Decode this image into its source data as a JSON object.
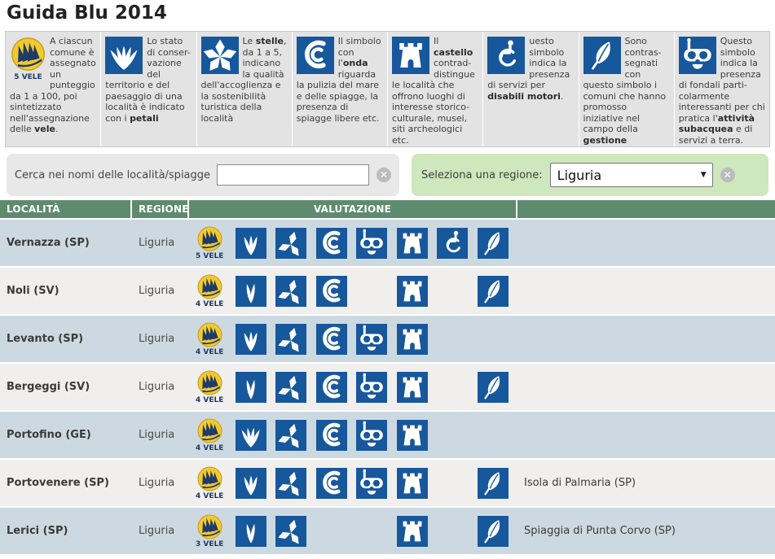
{
  "title": "Guida Blu 2014",
  "colors": {
    "icon_blue": "#17579c",
    "header_green": "#5e8b6d",
    "row_blue": "#cdd9e1",
    "row_gray": "#f0efed",
    "legend_gray": "#e3e3e3",
    "search_gray": "#e9e8e8",
    "region_green": "#cfe7bd",
    "vele_yellow": "#f3ca2a",
    "vele_navy": "#1e3a68"
  },
  "legend": {
    "items": [
      {
        "icon": "vele-badge",
        "badge_label": "5 VELE",
        "segments": [
          {
            "t": "A ciascun comune è assegnato un punteggio da 1 a 100, poi sintetizzato nell'assegnazione delle "
          },
          {
            "t": "vele",
            "b": 1
          },
          {
            "t": "."
          }
        ]
      },
      {
        "icon": "petali",
        "segments": [
          {
            "t": "Lo stato di conser-vazione del territorio e del paesaggio di una località è indicato con i "
          },
          {
            "t": "petali",
            "b": 1
          }
        ]
      },
      {
        "icon": "stelle",
        "segments": [
          {
            "t": "Le "
          },
          {
            "t": "stelle",
            "b": 1
          },
          {
            "t": ", da 1 a 5, indicano la qualità dell'accoglienza e la sostenibilità turistica della località"
          }
        ]
      },
      {
        "icon": "onda",
        "segments": [
          {
            "t": "Il simbolo con l'"
          },
          {
            "t": "onda",
            "b": 1
          },
          {
            "t": " riguarda la pulizia del mare e delle spiagge, la presenza di spiagge libere etc."
          }
        ]
      },
      {
        "icon": "castello",
        "segments": [
          {
            "t": "Il "
          },
          {
            "t": "castello",
            "b": 1
          },
          {
            "t": " contrad-distingue le località che offrono luoghi di interesse storico-culturale, musei, siti archeologici etc."
          }
        ]
      },
      {
        "icon": "disabili",
        "segments": [
          {
            "t": "uesto simbolo indica la presenza di servizi per "
          },
          {
            "t": "disabili motori",
            "b": 1
          },
          {
            "t": "."
          }
        ]
      },
      {
        "icon": "foglia",
        "segments": [
          {
            "t": "Sono contras-segnati con questo simbolo i comuni che hanno promosso iniziative nel campo della "
          },
          {
            "t": "gestione sostenibile",
            "b": 1
          },
          {
            "t": " ."
          }
        ]
      },
      {
        "icon": "subacquea",
        "segments": [
          {
            "t": "Questo simbolo indica la presenza di fondali parti-colarmente interessanti per chi pratica l'"
          },
          {
            "t": "attività subacquea",
            "b": 1
          },
          {
            "t": " e di servizi a terra."
          }
        ]
      }
    ]
  },
  "filters": {
    "search_label": "Cerca nei nomi delle località/spiagge",
    "search_value": "",
    "region_label": "Seleziona una regione:",
    "region_value": "Liguria",
    "clear_icon": "✕",
    "select_arrow": "▼"
  },
  "table": {
    "headers": [
      "LOCALITÀ",
      "REGIONE",
      "VALUTAZIONE",
      ""
    ],
    "rows": [
      {
        "localita": "Vernazza (SP)",
        "regione": "Liguria",
        "vele": "5 VELE",
        "icons": {
          "petali": 3,
          "stelle": true,
          "onda": true,
          "subacquea": true,
          "castello": true,
          "disabili": true,
          "foglia": true
        },
        "extra": ""
      },
      {
        "localita": "Noli (SV)",
        "regione": "Liguria",
        "vele": "4 VELE",
        "icons": {
          "petali": 2,
          "stelle": true,
          "onda": true,
          "subacquea": false,
          "castello": true,
          "disabili": false,
          "foglia": true
        },
        "extra": ""
      },
      {
        "localita": "Levanto (SP)",
        "regione": "Liguria",
        "vele": "4 VELE",
        "icons": {
          "petali": 3,
          "stelle": true,
          "onda": true,
          "subacquea": true,
          "castello": true,
          "disabili": false,
          "foglia": false
        },
        "extra": ""
      },
      {
        "localita": "Bergeggi (SV)",
        "regione": "Liguria",
        "vele": "4 VELE",
        "icons": {
          "petali": 2,
          "stelle": true,
          "onda": true,
          "subacquea": true,
          "castello": true,
          "disabili": false,
          "foglia": true
        },
        "extra": ""
      },
      {
        "localita": "Portofino (GE)",
        "regione": "Liguria",
        "vele": "4 VELE",
        "icons": {
          "petali": 4,
          "stelle": true,
          "onda": true,
          "subacquea": true,
          "castello": true,
          "disabili": false,
          "foglia": false
        },
        "extra": ""
      },
      {
        "localita": "Portovenere (SP)",
        "regione": "Liguria",
        "vele": "4 VELE",
        "icons": {
          "petali": 3,
          "stelle": true,
          "onda": true,
          "subacquea": true,
          "castello": true,
          "disabili": false,
          "foglia": true
        },
        "extra": "Isola di Palmaria (SP)"
      },
      {
        "localita": "Lerici (SP)",
        "regione": "Liguria",
        "vele": "3 VELE",
        "icons": {
          "petali": 2,
          "stelle": true,
          "onda": false,
          "subacquea": false,
          "castello": true,
          "disabili": false,
          "foglia": true
        },
        "extra": "Spiaggia di Punta Corvo (SP)"
      }
    ]
  }
}
